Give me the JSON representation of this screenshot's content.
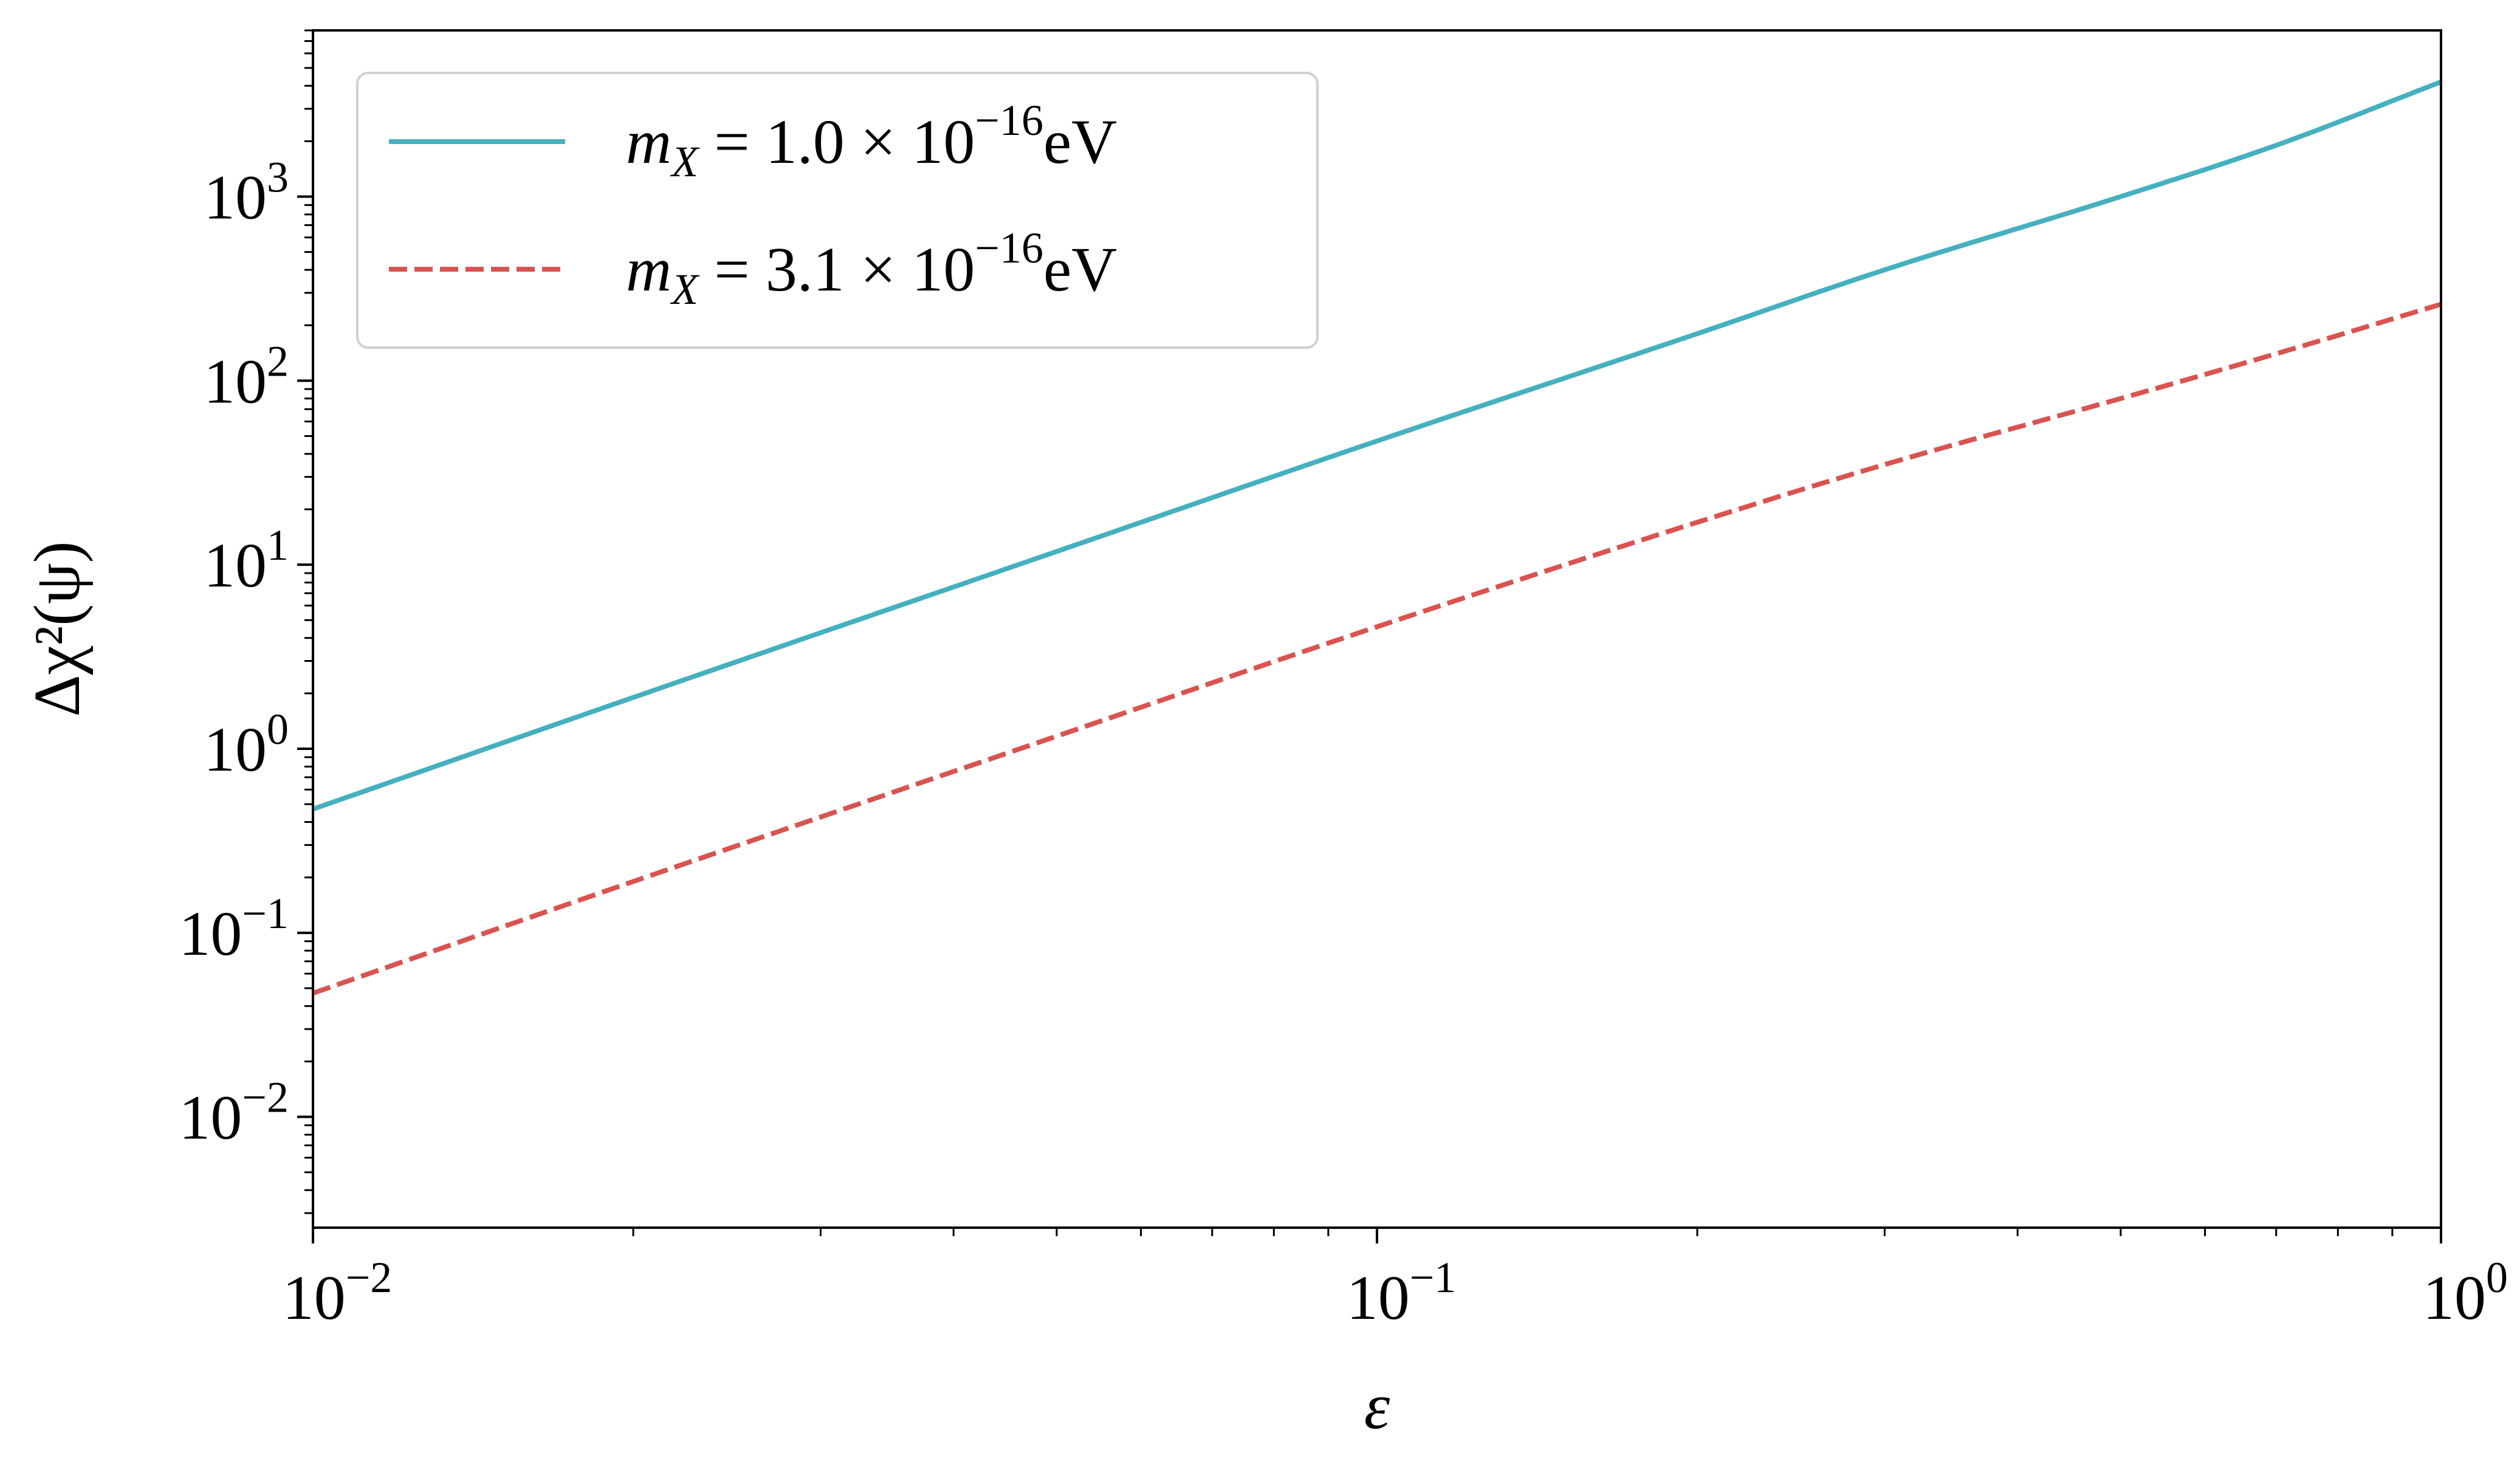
{
  "chart_data": {
    "type": "line",
    "xlabel": "ε",
    "ylabel": "Δχ²(ψ)",
    "xscale": "log",
    "yscale": "log",
    "xlim": [
      0.01,
      1
    ],
    "ylim": [
      0.0025,
      8000
    ],
    "x_ticks": [
      {
        "value": 0.01,
        "base": "10",
        "exp": "−2"
      },
      {
        "value": 0.1,
        "base": "10",
        "exp": "−1"
      },
      {
        "value": 1,
        "base": "10",
        "exp": "0"
      }
    ],
    "y_ticks": [
      {
        "value": 0.01,
        "base": "10",
        "exp": "−2"
      },
      {
        "value": 0.1,
        "base": "10",
        "exp": "−1"
      },
      {
        "value": 1,
        "base": "10",
        "exp": "0"
      },
      {
        "value": 10,
        "base": "10",
        "exp": "1"
      },
      {
        "value": 100,
        "base": "10",
        "exp": "2"
      },
      {
        "value": 1000,
        "base": "10",
        "exp": "3"
      }
    ],
    "legend_position": "top-left",
    "series": [
      {
        "name": "m_X = 1.0 × 10^−16 eV",
        "label_parts": {
          "m": "m",
          "sub": "X",
          "mid": " = 1.0 × 10",
          "sup": "−16",
          "unit": "eV"
        },
        "style": "solid",
        "color": "#45b0bf",
        "x": [
          0.01,
          0.02,
          0.05,
          0.1,
          0.2,
          0.3,
          0.5,
          0.7,
          1.0
        ],
        "y": [
          0.47,
          1.9,
          11.8,
          47,
          180,
          400,
          1000,
          1900,
          4200
        ]
      },
      {
        "name": "m_X = 3.1 × 10^−16 eV",
        "label_parts": {
          "m": "m",
          "sub": "X",
          "mid": " = 3.1 × 10",
          "sup": "−16",
          "unit": "eV"
        },
        "style": "dashed",
        "color": "#d9534f",
        "x": [
          0.01,
          0.02,
          0.05,
          0.1,
          0.2,
          0.3,
          0.5,
          0.7,
          1.0
        ],
        "y": [
          0.047,
          0.19,
          1.17,
          4.6,
          17,
          35,
          80,
          140,
          260
        ]
      }
    ]
  }
}
